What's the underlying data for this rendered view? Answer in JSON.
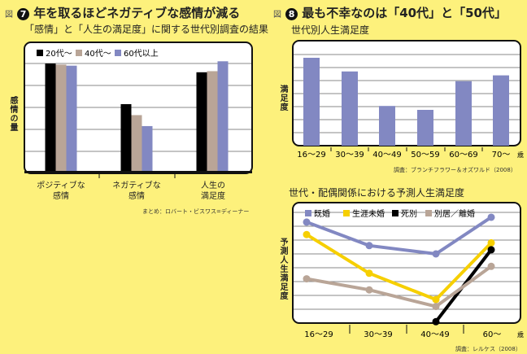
{
  "figures": [
    {
      "fig_label": "図",
      "number": "7",
      "title": "年を取るほどネガティブな感情が減る",
      "subtitle": "「感情」と「人生の満足度」に関する世代別調査の結果"
    },
    {
      "fig_label": "図",
      "number": "8",
      "title": "最も不幸なのは「40代」と「50代」",
      "subtitle": "世代別人生満足度"
    }
  ],
  "colors": {
    "background": "#fdf17c",
    "black": "#000000",
    "beige": "#b9a597",
    "purple": "#8288c2",
    "yellow": "#f6cf00"
  },
  "chart_data": [
    {
      "type": "bar",
      "ylabel": "感情の量",
      "categories": [
        "ポジティブな\n感情",
        "ネガティブな\n感情",
        "人生の\n満足度"
      ],
      "series": [
        {
          "name": "20代〜",
          "color": "#000000",
          "values": [
            5.0,
            3.15,
            4.6
          ]
        },
        {
          "name": "40代〜",
          "color": "#b9a597",
          "values": [
            4.95,
            2.65,
            4.65
          ]
        },
        {
          "name": "60代以上",
          "color": "#8288c2",
          "values": [
            4.9,
            2.15,
            5.1
          ]
        }
      ],
      "ylim": [
        0,
        5.9
      ],
      "grid": true,
      "legend": "top-left",
      "source": "まとめ：ロバート・ビスワス=ディーナー"
    },
    {
      "type": "bar",
      "ylabel": "満足度",
      "xunit": "歳",
      "categories": [
        "16〜29",
        "30〜39",
        "40〜49",
        "50〜59",
        "60〜69",
        "70〜"
      ],
      "values": [
        6.75,
        5.7,
        3.05,
        2.75,
        4.95,
        5.4
      ],
      "color": "#8288c2",
      "ylim": [
        0,
        8.1
      ],
      "grid": true,
      "source": "調査：ブランチフラワー＆オズワルド（2008）"
    },
    {
      "type": "line",
      "title": "世代・配偶関係における予測人生満足度",
      "ylabel": "予測人生満足度",
      "xunit": "歳",
      "categories": [
        "16〜29",
        "30〜39",
        "40〜49",
        "60〜"
      ],
      "series": [
        {
          "name": "既婚",
          "color": "#8288c2",
          "values": [
            7.3,
            5.6,
            5.0,
            7.65
          ]
        },
        {
          "name": "生涯未婚",
          "color": "#f6cf00",
          "values": [
            6.4,
            3.6,
            1.7,
            5.8
          ]
        },
        {
          "name": "死別",
          "color": "#000000",
          "values": [
            null,
            null,
            0.1,
            5.3
          ]
        },
        {
          "name": "別居／離婚",
          "color": "#b9a597",
          "values": [
            3.2,
            2.4,
            1.2,
            4.1
          ]
        }
      ],
      "ylim": [
        0,
        8.7
      ],
      "grid": true,
      "legend": "top",
      "source": "調査：レルケス（2008）"
    }
  ]
}
